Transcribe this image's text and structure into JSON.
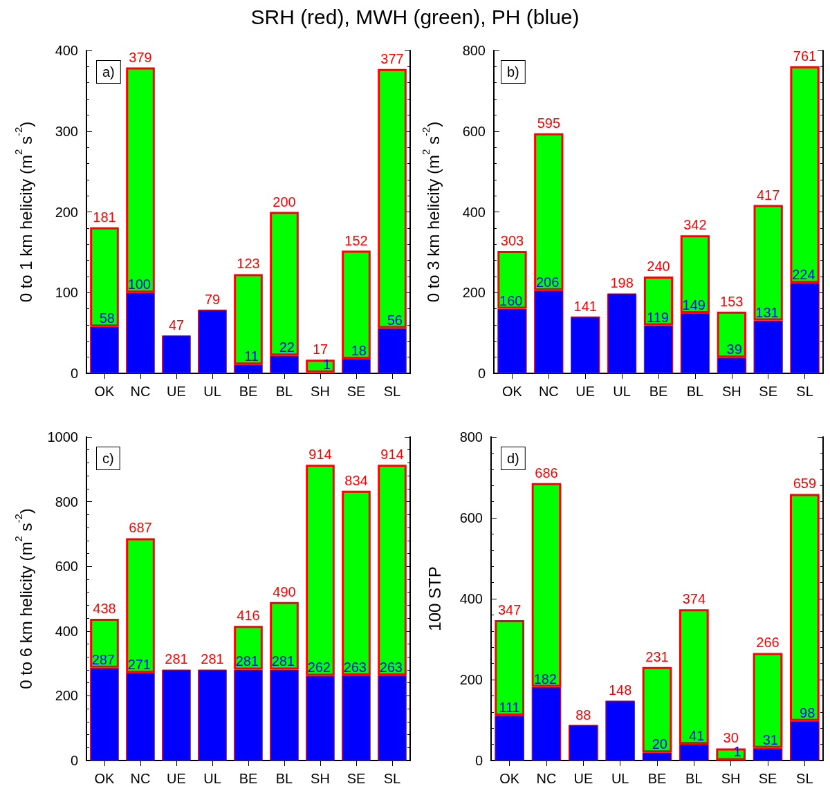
{
  "chart_data": [
    {
      "type": "bar",
      "stacked": true,
      "title": "SRH (red), MWH (green), PH (blue)",
      "annotations": [
        "a)"
      ],
      "ylabel": "0 to 1 km helicity (m$^{2}$ s$^{-2}$)",
      "categories": [
        "OK",
        "NC",
        "UE",
        "UL",
        "BE",
        "BL",
        "SH",
        "SE",
        "SL"
      ],
      "ylim": [
        0,
        400
      ],
      "yticks": [
        0,
        100,
        200,
        300,
        400
      ],
      "totals": [
        "181",
        "379",
        "47",
        "79",
        "123",
        "200",
        "17",
        "152",
        "377"
      ],
      "series": [
        {
          "color": "#0000ff",
          "values": [
            58,
            100,
            47,
            79,
            11,
            22,
            1,
            18,
            56
          ],
          "value_labels": [
            "58",
            "100",
            null,
            null,
            "11",
            "22",
            "1",
            "18",
            "56"
          ]
        },
        {
          "color": "#00ff00",
          "values": [
            123,
            279,
            null,
            null,
            112,
            178,
            16,
            134,
            321
          ]
        }
      ]
    },
    {
      "type": "bar",
      "stacked": true,
      "annotations": [
        "b)"
      ],
      "ylabel": "0 to 3 km helicity (m$^{2}$ s$^{-2}$)",
      "categories": [
        "OK",
        "NC",
        "UE",
        "UL",
        "BE",
        "BL",
        "SH",
        "SE",
        "SL"
      ],
      "ylim": [
        0,
        800
      ],
      "yticks": [
        0,
        200,
        400,
        600,
        800
      ],
      "totals": [
        "303",
        "595",
        "141",
        "198",
        "240",
        "342",
        "153",
        "417",
        "761"
      ],
      "series": [
        {
          "color": "#0000ff",
          "values": [
            160,
            206,
            141,
            198,
            119,
            149,
            39,
            131,
            224
          ],
          "value_labels": [
            "160",
            "206",
            null,
            null,
            "119",
            "149",
            "39",
            "131",
            "224"
          ]
        },
        {
          "color": "#00ff00",
          "values": [
            143,
            389,
            null,
            null,
            121,
            193,
            114,
            286,
            537
          ]
        }
      ]
    },
    {
      "type": "bar",
      "stacked": true,
      "annotations": [
        "c)"
      ],
      "ylabel": "0 to 6 km helicity (m$^{2}$ s$^{-2}$)",
      "categories": [
        "OK",
        "NC",
        "UE",
        "UL",
        "BE",
        "BL",
        "SH",
        "SE",
        "SL"
      ],
      "ylim": [
        0,
        1000
      ],
      "yticks": [
        0,
        200,
        400,
        600,
        800,
        1000
      ],
      "totals": [
        "438",
        "687",
        "281",
        "281",
        "416",
        "490",
        "914",
        "834",
        "914"
      ],
      "series": [
        {
          "color": "#0000ff",
          "values": [
            287,
            271,
            281,
            281,
            281,
            281,
            262,
            263,
            263
          ],
          "value_labels": [
            "287",
            "271",
            null,
            null,
            "281",
            "281",
            "262",
            "263",
            "263"
          ]
        },
        {
          "color": "#00ff00",
          "values": [
            151,
            416,
            null,
            null,
            135,
            209,
            652,
            571,
            651
          ]
        }
      ]
    },
    {
      "type": "bar",
      "stacked": true,
      "annotations": [
        "d)"
      ],
      "ylabel": "100 STP",
      "categories": [
        "OK",
        "NC",
        "UE",
        "UL",
        "BE",
        "BL",
        "SH",
        "SE",
        "SL"
      ],
      "ylim": [
        0,
        800
      ],
      "yticks": [
        0,
        200,
        400,
        600,
        800
      ],
      "totals": [
        "347",
        "686",
        "88",
        "148",
        "231",
        "374",
        "30",
        "266",
        "659"
      ],
      "series": [
        {
          "color": "#0000ff",
          "values": [
            111,
            182,
            88,
            148,
            20,
            41,
            1,
            31,
            98
          ],
          "value_labels": [
            "111",
            "182",
            null,
            null,
            "20",
            "41",
            "1",
            "31",
            "98"
          ]
        },
        {
          "color": "#00ff00",
          "values": [
            236,
            504,
            null,
            null,
            211,
            333,
            29,
            235,
            561
          ]
        }
      ]
    }
  ]
}
